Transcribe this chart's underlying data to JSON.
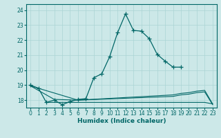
{
  "xlabel": "Humidex (Indice chaleur)",
  "background_color": "#cce8e8",
  "grid_color": "#aad4d4",
  "line_color": "#006666",
  "xlim": [
    -0.5,
    23.5
  ],
  "ylim": [
    17.5,
    24.4
  ],
  "yticks": [
    18,
    19,
    20,
    21,
    22,
    23,
    24
  ],
  "xticks": [
    0,
    1,
    2,
    3,
    4,
    5,
    6,
    7,
    8,
    9,
    10,
    11,
    12,
    13,
    14,
    15,
    16,
    17,
    18,
    19,
    20,
    21,
    22,
    23
  ],
  "series": [
    {
      "x": [
        0,
        1,
        2,
        3,
        4,
        5,
        6,
        7,
        8,
        9,
        10,
        11,
        12,
        13,
        14,
        15,
        16,
        17,
        18,
        19
      ],
      "y": [
        19.0,
        18.8,
        17.85,
        18.0,
        17.7,
        17.9,
        18.05,
        18.1,
        19.5,
        19.75,
        20.9,
        22.5,
        23.75,
        22.65,
        22.6,
        22.1,
        21.05,
        20.6,
        20.2,
        20.2
      ],
      "marker": true
    },
    {
      "x": [
        0,
        6,
        18,
        19,
        20,
        21,
        22,
        23
      ],
      "y": [
        18.95,
        18.0,
        18.35,
        18.45,
        18.5,
        18.6,
        18.65,
        17.75
      ],
      "marker": false
    },
    {
      "x": [
        0,
        3,
        6,
        18,
        19,
        20,
        21,
        22,
        23
      ],
      "y": [
        18.95,
        18.05,
        18.0,
        18.25,
        18.35,
        18.4,
        18.5,
        18.55,
        17.7
      ],
      "marker": false
    },
    {
      "x": [
        2,
        3,
        4,
        5,
        6,
        7,
        8,
        9,
        10,
        11,
        12,
        13,
        14,
        15,
        16,
        17,
        18,
        19,
        20,
        21,
        22,
        23
      ],
      "y": [
        17.85,
        17.85,
        17.85,
        17.85,
        17.85,
        17.85,
        17.85,
        17.85,
        17.85,
        17.85,
        17.85,
        17.85,
        17.85,
        17.85,
        17.85,
        17.85,
        17.85,
        17.85,
        17.85,
        17.85,
        17.85,
        17.75
      ],
      "marker": false
    }
  ]
}
